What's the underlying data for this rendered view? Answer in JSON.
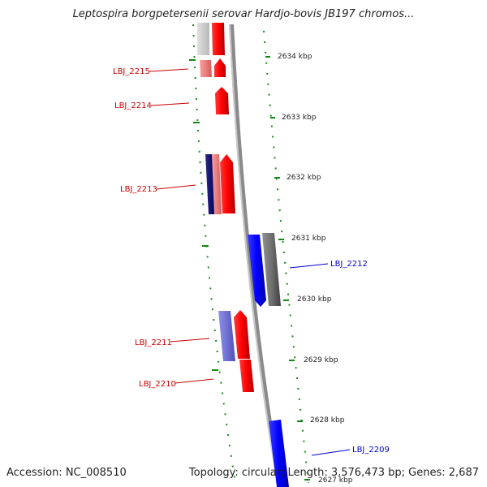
{
  "title": "Leptospira borgpetersenii serovar Hardjo-bovis JB197 chromos...",
  "accession": "Accession: NC_008510",
  "stats": "Topology: circular; Length: 3,576,473 bp; Genes: 2,687",
  "colors": {
    "forward": "#ee0000",
    "reverse": "#0000ee",
    "gray": "#777777",
    "tick": "#007700"
  },
  "ticks": [
    "2634 kbp",
    "2633 kbp",
    "2632 kbp",
    "2631 kbp",
    "2630 kbp",
    "2629 kbp",
    "2628 kbp",
    "2627 kbp"
  ],
  "genes": [
    {
      "label": "LBJ_2215",
      "strand": "forward"
    },
    {
      "label": "LBJ_2214",
      "strand": "forward"
    },
    {
      "label": "LBJ_2213",
      "strand": "forward"
    },
    {
      "label": "LBJ_2212",
      "strand": "reverse"
    },
    {
      "label": "LBJ_2211",
      "strand": "forward"
    },
    {
      "label": "LBJ_2210",
      "strand": "forward"
    },
    {
      "label": "LBJ_2209",
      "strand": "reverse"
    }
  ]
}
